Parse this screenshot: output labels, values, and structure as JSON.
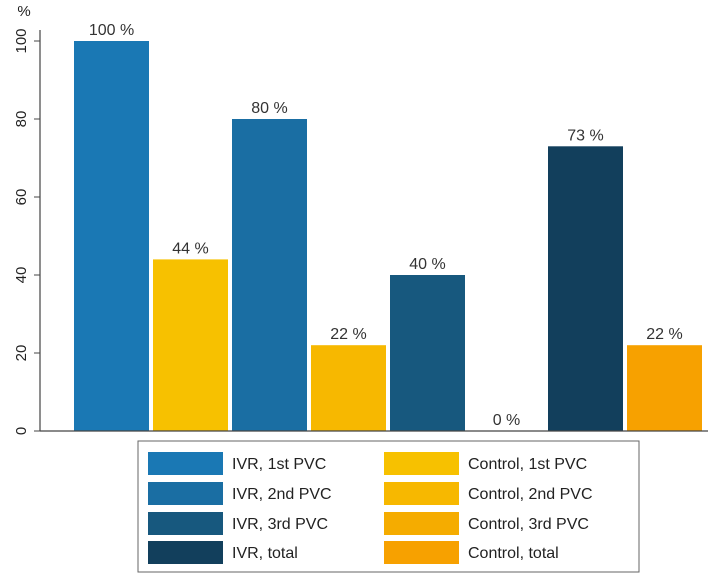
{
  "chart_data": {
    "type": "bar",
    "title": "",
    "xlabel": "",
    "ylabel": "%",
    "ylim": [
      0,
      100
    ],
    "yticks": [
      0,
      20,
      40,
      60,
      80,
      100
    ],
    "grid": false,
    "legend_placement": "bottom",
    "bars": [
      {
        "series": "IVR, 1st PVC",
        "value": 100,
        "label": "100 %",
        "color": "#1a78b4"
      },
      {
        "series": "Control, 1st PVC",
        "value": 44,
        "label": "44 %",
        "color": "#f7c100"
      },
      {
        "series": "IVR, 2nd PVC",
        "value": 80,
        "label": "80 %",
        "color": "#1a6ea3"
      },
      {
        "series": "Control, 2nd PVC",
        "value": 22,
        "label": "22 %",
        "color": "#f7b800"
      },
      {
        "series": "IVR, 3rd PVC",
        "value": 40,
        "label": "40 %",
        "color": "#17587e"
      },
      {
        "series": "Control, 3rd PVC",
        "value": 0,
        "label": "0 %",
        "color": "#f5ac00"
      },
      {
        "series": "IVR, total",
        "value": 73,
        "label": "73 %",
        "color": "#123f5c"
      },
      {
        "series": "Control, total",
        "value": 22,
        "label": "22 %",
        "color": "#f7a100"
      }
    ],
    "legend": {
      "left": [
        {
          "label": "IVR, 1st PVC",
          "color": "#1a78b4"
        },
        {
          "label": "IVR, 2nd PVC",
          "color": "#1a6ea3"
        },
        {
          "label": "IVR, 3rd PVC",
          "color": "#17587e"
        },
        {
          "label": "IVR, total",
          "color": "#123f5c"
        }
      ],
      "right": [
        {
          "label": "Control, 1st PVC",
          "color": "#f7c100"
        },
        {
          "label": "Control, 2nd PVC",
          "color": "#f7b800"
        },
        {
          "label": "Control, 3rd PVC",
          "color": "#f5ac00"
        },
        {
          "label": "Control, total",
          "color": "#f7a100"
        }
      ]
    }
  }
}
